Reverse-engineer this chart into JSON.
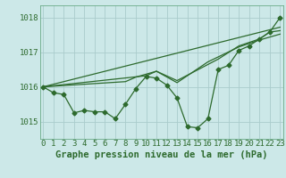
{
  "bg_color": "#cce8e8",
  "grid_color": "#aacccc",
  "line_color": "#2d6a2d",
  "xlabel": "Graphe pression niveau de la mer (hPa)",
  "xlabel_fontsize": 7.5,
  "tick_fontsize": 6.5,
  "yticks": [
    1015,
    1016,
    1017,
    1018
  ],
  "xticks": [
    0,
    1,
    2,
    3,
    4,
    5,
    6,
    7,
    8,
    9,
    10,
    11,
    12,
    13,
    14,
    15,
    16,
    17,
    18,
    19,
    20,
    21,
    22,
    23
  ],
  "ylim": [
    1014.5,
    1018.35
  ],
  "xlim": [
    -0.3,
    23.3
  ],
  "series1_x": [
    0,
    1,
    2,
    3,
    4,
    5,
    6,
    7,
    8,
    9,
    10,
    11,
    12,
    13,
    14,
    15,
    16,
    17,
    18,
    19,
    20,
    21,
    22,
    23
  ],
  "series1_y": [
    1016.0,
    1015.83,
    1015.78,
    1015.25,
    1015.32,
    1015.28,
    1015.28,
    1015.08,
    1015.5,
    1015.95,
    1016.3,
    1016.25,
    1016.05,
    1015.68,
    1014.85,
    1014.82,
    1015.08,
    1016.5,
    1016.62,
    1017.05,
    1017.18,
    1017.38,
    1017.58,
    1018.0
  ],
  "series2_x": [
    0,
    10,
    11,
    13,
    17,
    19,
    21,
    22,
    23
  ],
  "series2_y": [
    1016.0,
    1016.32,
    1016.45,
    1016.18,
    1016.8,
    1017.18,
    1017.38,
    1017.58,
    1017.62
  ],
  "series3_x": [
    0,
    8,
    9,
    11,
    13,
    16,
    19,
    21,
    23
  ],
  "series3_y": [
    1016.0,
    1016.15,
    1016.28,
    1016.45,
    1016.12,
    1016.72,
    1017.15,
    1017.35,
    1017.52
  ],
  "series4_x": [
    0,
    23
  ],
  "series4_y": [
    1016.0,
    1017.72
  ]
}
